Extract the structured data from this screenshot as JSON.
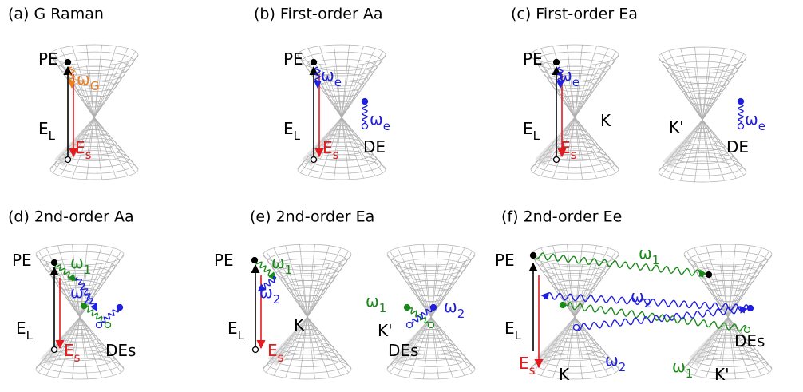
{
  "panels": [
    {
      "title": "(a) G Raman",
      "labels": [
        {
          "text": "PE",
          "color": "#000000"
        },
        {
          "text": "ω",
          "sub": "G",
          "color": "#f07f1e"
        },
        {
          "text": "E",
          "sub": "L",
          "color": "#000000"
        },
        {
          "text": "E",
          "sub": "s",
          "color": "#e41a1c"
        }
      ]
    },
    {
      "title": "(b) First-order Aa",
      "labels": [
        {
          "text": "PE",
          "color": "#000000"
        },
        {
          "text": "ω",
          "sub": "e",
          "color": "#1f1fe0"
        },
        {
          "text": "ω",
          "sub": "e",
          "color": "#1f1fe0"
        },
        {
          "text": "E",
          "sub": "L",
          "color": "#000000"
        },
        {
          "text": "E",
          "sub": "s",
          "color": "#e41a1c"
        },
        {
          "text": "DE",
          "color": "#000000"
        }
      ]
    },
    {
      "title": "(c) First-order Ea",
      "labels": [
        {
          "text": "PE",
          "color": "#000000"
        },
        {
          "text": "ω",
          "sub": "e",
          "color": "#1f1fe0"
        },
        {
          "text": "K",
          "color": "#000000"
        },
        {
          "text": "K'",
          "color": "#000000"
        },
        {
          "text": "ω",
          "sub": "e",
          "color": "#1f1fe0"
        },
        {
          "text": "E",
          "sub": "L",
          "color": "#000000"
        },
        {
          "text": "E",
          "sub": "s",
          "color": "#e41a1c"
        },
        {
          "text": "DE",
          "color": "#000000"
        }
      ]
    },
    {
      "title": "(d) 2nd-order Aa",
      "labels": [
        {
          "text": "PE",
          "color": "#000000"
        },
        {
          "text": "ω",
          "sub": "1",
          "color": "#1a8a1a"
        },
        {
          "text": "ω",
          "sub": "2",
          "color": "#1f1fe0"
        },
        {
          "text": "E",
          "sub": "L",
          "color": "#000000"
        },
        {
          "text": "E",
          "sub": "s",
          "color": "#e41a1c"
        },
        {
          "text": "DEs",
          "color": "#000000"
        }
      ]
    },
    {
      "title": "(e) 2nd-order Ea",
      "labels": [
        {
          "text": "PE",
          "color": "#000000"
        },
        {
          "text": "ω",
          "sub": "1",
          "color": "#1a8a1a"
        },
        {
          "text": "ω",
          "sub": "2",
          "color": "#1f1fe0"
        },
        {
          "text": "K",
          "color": "#000000"
        },
        {
          "text": "E",
          "sub": "L",
          "color": "#000000"
        },
        {
          "text": "E",
          "sub": "s",
          "color": "#e41a1c"
        },
        {
          "text": "ω",
          "sub": "1",
          "color": "#1a8a1a"
        },
        {
          "text": "ω",
          "sub": "2",
          "color": "#1f1fe0"
        },
        {
          "text": "K'",
          "color": "#000000"
        },
        {
          "text": "DEs",
          "color": "#000000"
        }
      ]
    },
    {
      "title": "(f) 2nd-order Ee",
      "labels": [
        {
          "text": "PE",
          "color": "#000000"
        },
        {
          "text": "ω",
          "sub": "1",
          "color": "#1a8a1a"
        },
        {
          "text": "ω",
          "sub": "2",
          "color": "#1f1fe0"
        },
        {
          "text": "E",
          "sub": "L",
          "color": "#000000"
        },
        {
          "text": "E",
          "sub": "s",
          "color": "#e41a1c"
        },
        {
          "text": "ω",
          "sub": "2",
          "color": "#1f1fe0"
        },
        {
          "text": "ω",
          "sub": "1",
          "color": "#1a8a1a"
        },
        {
          "text": "DEs",
          "color": "#000000"
        },
        {
          "text": "K",
          "color": "#000000"
        },
        {
          "text": "K'",
          "color": "#000000"
        }
      ]
    }
  ]
}
